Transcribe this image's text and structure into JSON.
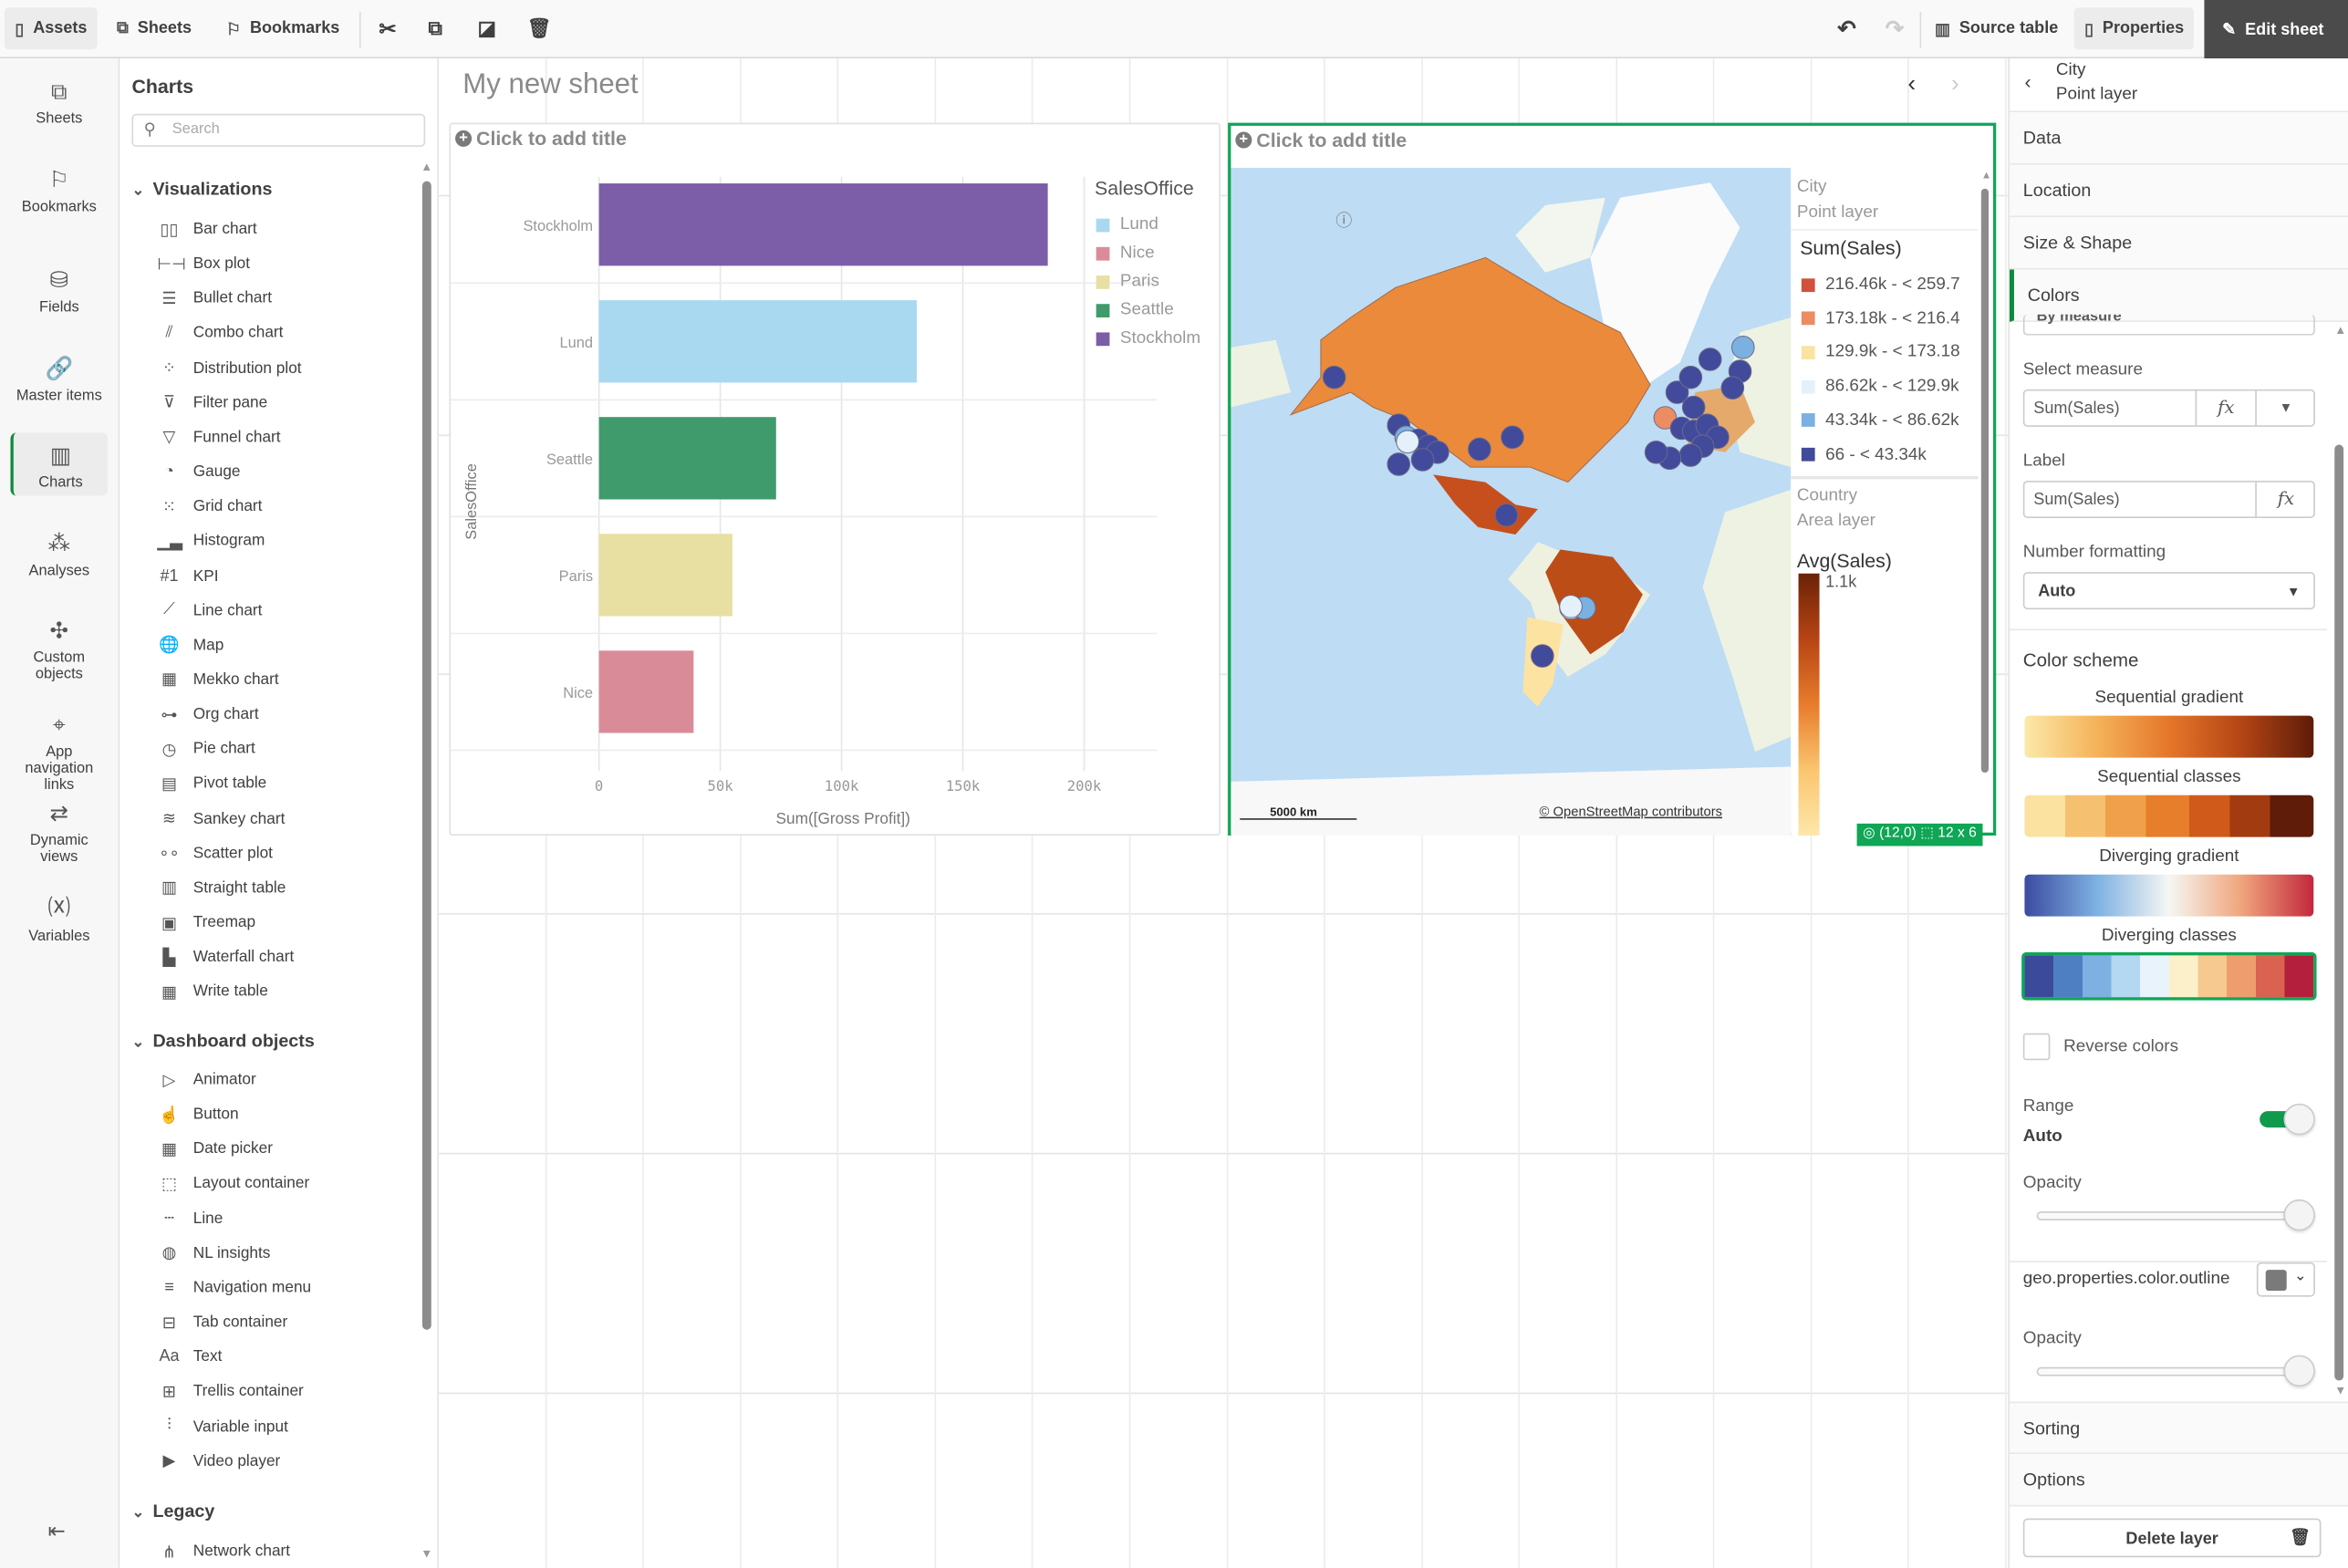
{
  "toolbar": {
    "assets": "Assets",
    "sheets": "Sheets",
    "bookmarks": "Bookmarks",
    "source_table": "Source table",
    "properties": "Properties",
    "edit_sheet": "Edit sheet"
  },
  "rail": [
    {
      "label": "Sheets",
      "icon": "sheets-icon"
    },
    {
      "label": "Bookmarks",
      "icon": "bookmark-icon"
    },
    {
      "label": "Fields",
      "icon": "database-icon"
    },
    {
      "label": "Master items",
      "icon": "link-icon"
    },
    {
      "label": "Charts",
      "icon": "chart-icon",
      "active": true
    },
    {
      "label": "Analyses",
      "icon": "analyses-icon"
    },
    {
      "label": "Custom objects",
      "icon": "puzzle-icon"
    },
    {
      "label": "App navigation links",
      "icon": "navigation-icon"
    },
    {
      "label": "Dynamic views",
      "icon": "dynamic-views-icon"
    },
    {
      "label": "Variables",
      "icon": "variables-icon"
    }
  ],
  "assets": {
    "title": "Charts",
    "search_placeholder": "Search",
    "visualizations_label": "Visualizations",
    "visualizations": [
      {
        "label": "Bar chart",
        "glyph": "▯▯"
      },
      {
        "label": "Box plot",
        "glyph": "⊢⊣"
      },
      {
        "label": "Bullet chart",
        "glyph": "☰"
      },
      {
        "label": "Combo chart",
        "glyph": "⫽"
      },
      {
        "label": "Distribution plot",
        "glyph": "⁘"
      },
      {
        "label": "Filter pane",
        "glyph": "⊽"
      },
      {
        "label": "Funnel chart",
        "glyph": "▽"
      },
      {
        "label": "Gauge",
        "glyph": "◔"
      },
      {
        "label": "Grid chart",
        "glyph": "⁙"
      },
      {
        "label": "Histogram",
        "glyph": "▁▃"
      },
      {
        "label": "KPI",
        "glyph": "#1"
      },
      {
        "label": "Line chart",
        "glyph": "⟋"
      },
      {
        "label": "Map",
        "glyph": "🌐"
      },
      {
        "label": "Mekko chart",
        "glyph": "▦"
      },
      {
        "label": "Org chart",
        "glyph": "⊶"
      },
      {
        "label": "Pie chart",
        "glyph": "◷"
      },
      {
        "label": "Pivot table",
        "glyph": "▤"
      },
      {
        "label": "Sankey chart",
        "glyph": "≋"
      },
      {
        "label": "Scatter plot",
        "glyph": "∘∘"
      },
      {
        "label": "Straight table",
        "glyph": "▥"
      },
      {
        "label": "Treemap",
        "glyph": "▣"
      },
      {
        "label": "Waterfall chart",
        "glyph": "▙"
      },
      {
        "label": "Write table",
        "glyph": "▦"
      }
    ],
    "dashboard_label": "Dashboard objects",
    "dashboard": [
      {
        "label": "Animator",
        "glyph": "▷"
      },
      {
        "label": "Button",
        "glyph": "☝"
      },
      {
        "label": "Date picker",
        "glyph": "▦"
      },
      {
        "label": "Layout container",
        "glyph": "⬚"
      },
      {
        "label": "Line",
        "glyph": "┄"
      },
      {
        "label": "NL insights",
        "glyph": "◍"
      },
      {
        "label": "Navigation menu",
        "glyph": "≡"
      },
      {
        "label": "Tab container",
        "glyph": "⊟"
      },
      {
        "label": "Text",
        "glyph": "Aa"
      },
      {
        "label": "Trellis container",
        "glyph": "⊞"
      },
      {
        "label": "Variable input",
        "glyph": "⫶"
      },
      {
        "label": "Video player",
        "glyph": "▶"
      }
    ],
    "legacy_label": "Legacy",
    "legacy": [
      {
        "label": "Network chart",
        "glyph": "⋔"
      }
    ]
  },
  "sheet": {
    "title": "My new sheet"
  },
  "bar_object": {
    "add_title": "Click to add title"
  },
  "chart_data": {
    "type": "bar",
    "orientation": "horizontal",
    "categories": [
      "Stockholm",
      "Lund",
      "Seattle",
      "Paris",
      "Nice"
    ],
    "values": [
      185000,
      131000,
      73000,
      55000,
      39000
    ],
    "colors": [
      "#7b5ea7",
      "#a9d9f0",
      "#3f9b6c",
      "#e8dfa3",
      "#d98c97"
    ],
    "xlabel": "Sum([Gross Profit])",
    "ylabel": "SalesOffice",
    "xlim": [
      0,
      220000
    ],
    "xticks": [
      {
        "v": 0,
        "label": "0"
      },
      {
        "v": 50000,
        "label": "50k"
      },
      {
        "v": 100000,
        "label": "100k"
      },
      {
        "v": 150000,
        "label": "150k"
      },
      {
        "v": 200000,
        "label": "200k"
      }
    ],
    "legend": {
      "title": "SalesOffice",
      "position": "right",
      "items": [
        {
          "name": "Lund",
          "color": "#a9d9f0"
        },
        {
          "name": "Nice",
          "color": "#d98c97"
        },
        {
          "name": "Paris",
          "color": "#e8dfa3"
        },
        {
          "name": "Seattle",
          "color": "#3f9b6c"
        },
        {
          "name": "Stockholm",
          "color": "#7b5ea7"
        }
      ]
    },
    "grid": true
  },
  "map_object": {
    "add_title": "Click to add title",
    "scale": "5000 km",
    "attribution": "© OpenStreetMap contributors",
    "position_badge": "(12,0)",
    "size_badge": "12 x 6",
    "legend": {
      "point_layer": {
        "name": "City",
        "type": "Point layer",
        "measure": "Sum(Sales)",
        "classes": [
          {
            "label": "216.46k - < 259.7",
            "color": "#d0513c"
          },
          {
            "label": "173.18k - < 216.4",
            "color": "#ec8c62"
          },
          {
            "label": "129.9k - < 173.18",
            "color": "#fbe3a4"
          },
          {
            "label": "86.62k - < 129.9k",
            "color": "#e4f1fb"
          },
          {
            "label": "43.34k - < 86.62k",
            "color": "#7ab1e0"
          },
          {
            "label": "66 - < 43.34k",
            "color": "#424a9b"
          }
        ]
      },
      "area_layer": {
        "name": "Country",
        "type": "Area layer",
        "measure": "Avg(Sales)",
        "max_label": "1.1k"
      }
    }
  },
  "properties": {
    "header_title": "City",
    "header_subtitle": "Point layer",
    "sections": [
      "Data",
      "Location",
      "Size & Shape",
      "Colors"
    ],
    "color_mode": "By measure",
    "select_measure_label": "Select measure",
    "select_measure_value": "Sum(Sales)",
    "label_label": "Label",
    "label_value": "Sum(Sales)",
    "number_formatting_label": "Number formatting",
    "number_formatting_value": "Auto",
    "color_scheme_label": "Color scheme",
    "schemes": [
      {
        "name": "Sequential gradient"
      },
      {
        "name": "Sequential classes"
      },
      {
        "name": "Diverging gradient"
      },
      {
        "name": "Diverging classes",
        "selected": true
      }
    ],
    "reverse_colors_label": "Reverse colors",
    "reverse_colors": false,
    "range_label": "Range",
    "range_value": "Auto",
    "range_auto": true,
    "opacity_label": "Opacity",
    "opacity": 1.0,
    "outline_label": "geo.properties.color.outline",
    "outline_color": "#7a7a7a",
    "opacity2_label": "Opacity",
    "opacity2": 1.0,
    "bottom_sections": [
      "Sorting",
      "Options"
    ],
    "delete_layer": "Delete layer"
  }
}
